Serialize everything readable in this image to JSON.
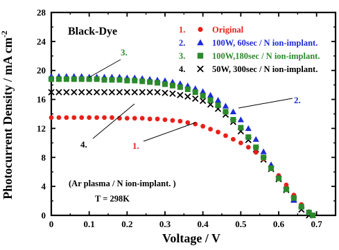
{
  "chart_data": {
    "type": "scatter",
    "title": "",
    "xlabel": "Voltage / V",
    "ylabel": "Photocurrent Density / mA cm",
    "ylabel_superscript": "-2",
    "xlim": [
      0,
      0.75
    ],
    "ylim": [
      0,
      28
    ],
    "xticks": [
      0,
      0.1,
      0.2,
      0.3,
      0.4,
      0.5,
      0.6,
      0.7
    ],
    "xtick_labels": [
      "0",
      "0.1",
      "0.2",
      "0.3",
      "0.4",
      "0.5",
      "0.6",
      "0.7"
    ],
    "yticks": [
      0,
      4,
      8,
      12,
      16,
      20,
      24,
      28
    ],
    "ytick_labels": [
      "0",
      "4",
      "8",
      "12",
      "16",
      "20",
      "24",
      "28"
    ],
    "grid": false,
    "legend_position": "top-right",
    "annotations": {
      "dye": "Black-Dye",
      "condition": "(Ar plasma / N ion-implant. )",
      "temperature": "T = 298K"
    },
    "series": [
      {
        "name": "Original",
        "legend_number": "1.",
        "callout_label": "1.",
        "marker": "circle",
        "color": "#e8201a",
        "x": [
          0.0,
          0.02,
          0.04,
          0.06,
          0.08,
          0.1,
          0.12,
          0.14,
          0.16,
          0.18,
          0.2,
          0.22,
          0.24,
          0.26,
          0.28,
          0.3,
          0.32,
          0.34,
          0.36,
          0.38,
          0.4,
          0.42,
          0.44,
          0.46,
          0.48,
          0.5,
          0.52,
          0.54,
          0.56,
          0.58,
          0.6,
          0.62,
          0.64,
          0.66,
          0.68,
          0.69
        ],
        "y": [
          13.5,
          13.5,
          13.5,
          13.5,
          13.5,
          13.5,
          13.5,
          13.5,
          13.5,
          13.4,
          13.4,
          13.4,
          13.4,
          13.3,
          13.3,
          13.2,
          13.1,
          13.0,
          12.8,
          12.6,
          12.3,
          11.9,
          11.5,
          11.0,
          10.5,
          10.0,
          9.4,
          8.7,
          7.8,
          6.7,
          5.5,
          4.2,
          2.8,
          1.5,
          0.5,
          0.0
        ]
      },
      {
        "name": "100W, 60sec / N ion-implant.",
        "legend_number": "2.",
        "callout_label": "2.",
        "marker": "triangle",
        "color": "#1c2bd6",
        "x": [
          0.0,
          0.02,
          0.04,
          0.06,
          0.08,
          0.1,
          0.12,
          0.14,
          0.16,
          0.18,
          0.2,
          0.22,
          0.24,
          0.26,
          0.28,
          0.3,
          0.32,
          0.34,
          0.36,
          0.38,
          0.4,
          0.42,
          0.44,
          0.46,
          0.48,
          0.5,
          0.52,
          0.54,
          0.56,
          0.58,
          0.6,
          0.62,
          0.64,
          0.66,
          0.68,
          0.69
        ],
        "y": [
          19.2,
          19.2,
          19.2,
          19.2,
          19.2,
          19.1,
          19.1,
          19.1,
          19.1,
          19.1,
          19.0,
          19.0,
          18.9,
          18.8,
          18.7,
          18.6,
          18.4,
          18.2,
          17.9,
          17.5,
          17.1,
          16.6,
          15.9,
          15.1,
          14.3,
          13.2,
          12.0,
          10.5,
          8.8,
          7.0,
          5.2,
          3.6,
          2.1,
          1.2,
          0.4,
          0.0
        ]
      },
      {
        "name": "100W,180sec / N ion-implant.",
        "legend_number": "3.",
        "callout_label": "3.",
        "marker": "square",
        "color": "#2b8a2b",
        "x": [
          0.0,
          0.02,
          0.04,
          0.06,
          0.08,
          0.1,
          0.12,
          0.14,
          0.16,
          0.18,
          0.2,
          0.22,
          0.24,
          0.26,
          0.28,
          0.3,
          0.32,
          0.34,
          0.36,
          0.38,
          0.4,
          0.42,
          0.44,
          0.46,
          0.48,
          0.5,
          0.52,
          0.54,
          0.56,
          0.58,
          0.6,
          0.62,
          0.64,
          0.66,
          0.68,
          0.69
        ],
        "y": [
          18.8,
          18.8,
          18.8,
          18.8,
          18.8,
          18.8,
          18.8,
          18.7,
          18.7,
          18.7,
          18.6,
          18.6,
          18.5,
          18.4,
          18.3,
          18.1,
          17.9,
          17.7,
          17.4,
          17.0,
          16.5,
          15.9,
          15.2,
          14.3,
          13.2,
          12.1,
          10.8,
          9.4,
          8.0,
          6.5,
          5.1,
          3.6,
          2.4,
          1.2,
          0.4,
          0.0
        ]
      },
      {
        "name": "50W, 300sec / N ion-implant.",
        "legend_number": "4.",
        "callout_label": "4.",
        "marker": "x",
        "color": "#000000",
        "x": [
          0.0,
          0.02,
          0.04,
          0.06,
          0.08,
          0.1,
          0.12,
          0.14,
          0.16,
          0.18,
          0.2,
          0.22,
          0.24,
          0.26,
          0.28,
          0.3,
          0.32,
          0.34,
          0.36,
          0.38,
          0.4,
          0.42,
          0.44,
          0.46,
          0.48,
          0.5,
          0.52,
          0.54,
          0.56,
          0.58,
          0.6,
          0.62,
          0.64,
          0.66,
          0.68
        ],
        "y": [
          17.0,
          17.0,
          17.0,
          17.0,
          17.0,
          17.0,
          17.0,
          17.0,
          17.0,
          17.0,
          17.0,
          17.0,
          17.0,
          17.0,
          17.0,
          16.9,
          16.8,
          16.6,
          16.4,
          16.1,
          15.8,
          15.3,
          14.7,
          13.9,
          12.9,
          11.6,
          10.4,
          9.1,
          7.7,
          6.4,
          5.0,
          3.5,
          2.2,
          0.8,
          0.0
        ]
      }
    ]
  }
}
